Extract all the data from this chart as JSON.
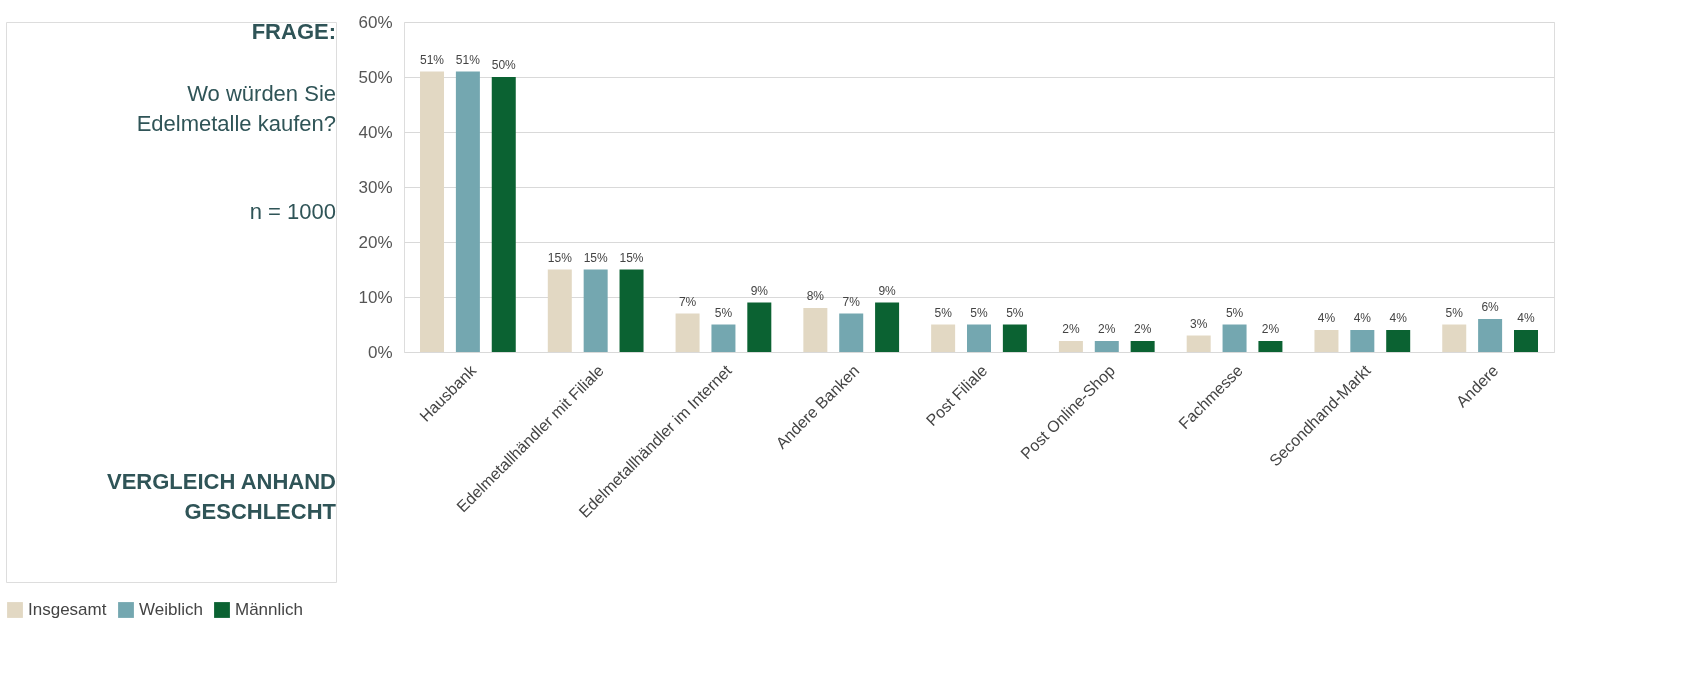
{
  "chart_data": {
    "type": "bar",
    "title": "FRAGE:",
    "subtitle": "Wo würden Sie Edelmetalle kaufen?",
    "annotations": [
      "n = 1000",
      "VERGLEICH ANHAND GESCHLECHT"
    ],
    "categories": [
      "Hausbank",
      "Edelmetallhändler mit Filiale",
      "Edelmetallhändler im Internet",
      "Andere Banken",
      "Post Filiale",
      "Post Online-Shop",
      "Fachmesse",
      "Secondhand-Markt",
      "Andere"
    ],
    "series": [
      {
        "name": "Insgesamt",
        "color": "#e2d8c3",
        "values": [
          51,
          15,
          7,
          8,
          5,
          2,
          3,
          4,
          5
        ],
        "value_labels": [
          "51%",
          "15%",
          "7%",
          "8%",
          "5%",
          "2%",
          "3%",
          "4%",
          "5%"
        ]
      },
      {
        "name": "Weiblich",
        "color": "#74a7b0",
        "values": [
          51,
          15,
          5,
          7,
          5,
          2,
          5,
          4,
          6
        ],
        "value_labels": [
          "51%",
          "15%",
          "5%",
          "7%",
          "5%",
          "2%",
          "5%",
          "4%",
          "6%"
        ]
      },
      {
        "name": "Männlich",
        "color": "#0b6232",
        "values": [
          50,
          15,
          9,
          9,
          5,
          2,
          2,
          4,
          4
        ],
        "value_labels": [
          "50%",
          "15%",
          "9%",
          "9%",
          "5%",
          "2%",
          "2%",
          "4%",
          "4%"
        ]
      }
    ],
    "ylim": [
      0,
      60
    ],
    "yticks": [
      {
        "value": 0,
        "label": "0%"
      },
      {
        "value": 10,
        "label": "10%"
      },
      {
        "value": 20,
        "label": "20%"
      },
      {
        "value": 30,
        "label": "30%"
      },
      {
        "value": 40,
        "label": "40%"
      },
      {
        "value": 50,
        "label": "50%"
      },
      {
        "value": 60,
        "label": "60%"
      }
    ],
    "grid": "y",
    "legend": "bottom"
  }
}
